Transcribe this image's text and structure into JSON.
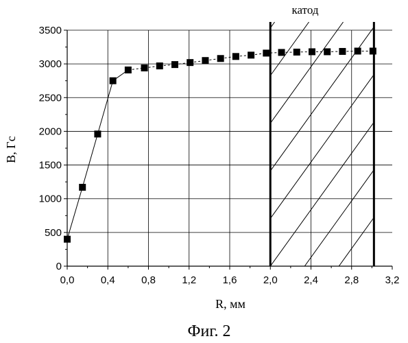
{
  "chart_data": {
    "type": "scatter",
    "xlabel": "R, мм",
    "ylabel": "B, Гс",
    "caption": "Фиг. 2",
    "region_label": "катод",
    "xlim": [
      0,
      3.2
    ],
    "ylim": [
      0,
      3500
    ],
    "x_ticks": [
      "0,0",
      "0,4",
      "0,8",
      "1,2",
      "1,6",
      "2,0",
      "2,4",
      "2,8",
      "3,2"
    ],
    "y_ticks": [
      "0",
      "500",
      "1000",
      "1500",
      "2000",
      "2500",
      "3000",
      "3500"
    ],
    "grid": true,
    "region": {
      "x_start": 2.0,
      "x_end": 3.02
    },
    "series": [
      {
        "marker": "square",
        "line": "solid-to-dashed",
        "color": "#000000",
        "points": [
          [
            0.0,
            400
          ],
          [
            0.15,
            1170
          ],
          [
            0.3,
            1960
          ],
          [
            0.45,
            2750
          ],
          [
            0.6,
            2910
          ],
          [
            0.76,
            2940
          ],
          [
            0.91,
            2970
          ],
          [
            1.06,
            2990
          ],
          [
            1.21,
            3020
          ],
          [
            1.36,
            3050
          ],
          [
            1.51,
            3080
          ],
          [
            1.66,
            3110
          ],
          [
            1.81,
            3130
          ],
          [
            1.96,
            3160
          ],
          [
            2.11,
            3170
          ],
          [
            2.26,
            3175
          ],
          [
            2.41,
            3180
          ],
          [
            2.56,
            3180
          ],
          [
            2.71,
            3185
          ],
          [
            2.86,
            3190
          ],
          [
            3.01,
            3190
          ]
        ]
      }
    ]
  }
}
